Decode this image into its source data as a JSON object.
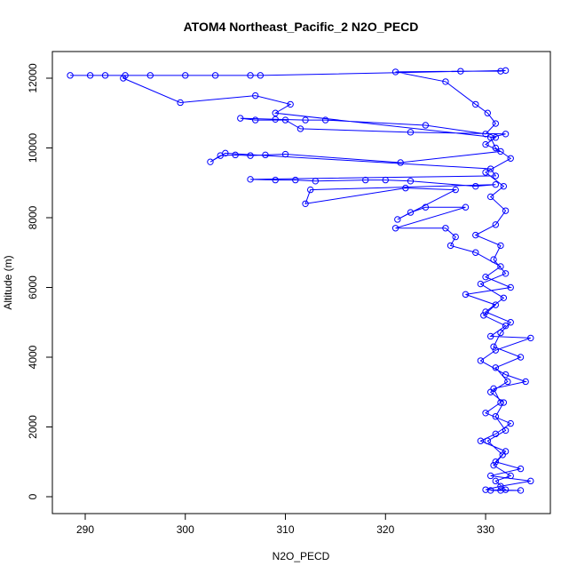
{
  "chart_data": {
    "type": "line",
    "title": "ATOM4 Northeast_Pacific_2 N2O_PECD",
    "xlabel": "N2O_PECD",
    "ylabel": "Altitude (m)",
    "color": "#0000ff",
    "marker": "circle",
    "x": [
      330.5,
      331.5,
      332,
      331,
      332.5,
      330.8,
      331.7,
      330.2,
      332,
      331,
      331.8,
      330.5,
      332.2,
      331,
      333.5,
      330.8,
      331.5,
      332.5,
      330,
      331.8,
      329.5,
      332,
      330.8,
      331.5,
      329,
      331,
      332,
      330.5,
      331.8,
      330,
      332.5,
      331,
      330.5,
      332,
      322.5,
      311.5,
      310,
      307,
      305.5,
      309,
      312,
      314,
      324,
      330,
      331,
      330.2,
      329,
      326,
      321,
      327.5,
      331.5,
      332,
      307.5,
      306.5,
      303,
      300,
      296.5,
      292,
      290.5,
      288.5,
      294,
      293.8,
      299.5,
      307,
      310.5,
      309,
      331,
      330,
      331.5,
      321.5,
      310,
      308,
      306.5,
      305,
      303.5,
      302.5,
      304,
      330.5,
      331,
      306.5,
      309,
      311,
      313,
      318,
      320,
      322.5,
      329,
      331,
      312.5,
      312,
      322,
      327,
      321.2,
      322.5,
      324,
      328,
      321,
      326,
      327,
      326.5,
      329,
      331.5,
      330,
      332.5,
      328,
      331,
      329.8,
      332,
      330.5,
      334.5,
      331,
      329.5,
      332,
      334,
      330.8,
      331.5,
      330,
      332.5,
      331,
      329.5,
      332,
      331,
      333.5,
      330.5,
      334.5,
      331.5,
      330,
      333.5
    ],
    "values": [
      180,
      180,
      200,
      450,
      600,
      900,
      1200,
      1600,
      1900,
      2300,
      2700,
      3000,
      3300,
      3700,
      4000,
      4300,
      4700,
      5000,
      5300,
      5700,
      6100,
      6400,
      6800,
      7200,
      7500,
      7800,
      8200,
      8600,
      8900,
      9300,
      9700,
      10000,
      10300,
      10400,
      10450,
      10550,
      10800,
      10800,
      10850,
      10820,
      10800,
      10800,
      10650,
      10400,
      10700,
      11000,
      11250,
      11900,
      12180,
      12200,
      12200,
      12220,
      12080,
      12080,
      12080,
      12080,
      12080,
      12080,
      12080,
      12080,
      12080,
      12000,
      11300,
      11500,
      11250,
      11000,
      10300,
      10100,
      9900,
      9580,
      9820,
      9800,
      9780,
      9800,
      9780,
      9600,
      9850,
      9400,
      9200,
      9100,
      9080,
      9080,
      9050,
      9080,
      9080,
      9050,
      8900,
      8950,
      8800,
      8400,
      8850,
      8800,
      7950,
      8150,
      8300,
      8300,
      7700,
      7700,
      7450,
      7200,
      7000,
      6600,
      6300,
      6000,
      5800,
      5500,
      5200,
      4900,
      4600,
      4550,
      4200,
      3900,
      3500,
      3300,
      3100,
      2700,
      2400,
      2100,
      1800,
      1600,
      1300,
      1000,
      800,
      600,
      450,
      300,
      200,
      180
    ],
    "xlim": [
      286.72,
      336.47
    ],
    "ylim": [
      -484,
      12764
    ],
    "xticks": [
      290,
      300,
      310,
      320,
      330
    ],
    "yticks": [
      0,
      2000,
      4000,
      6000,
      8000,
      10000,
      12000
    ]
  }
}
